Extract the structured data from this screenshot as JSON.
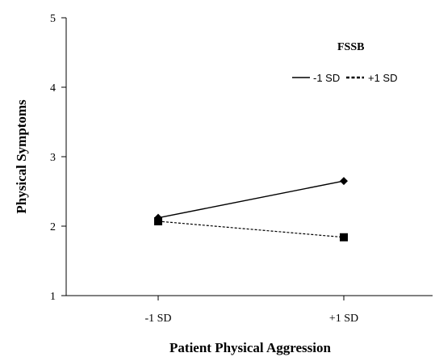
{
  "chart_data": {
    "type": "line",
    "categories": [
      "-1 SD",
      "+1 SD"
    ],
    "series": [
      {
        "name": "-1 SD",
        "values": [
          2.12,
          2.65
        ],
        "line_style": "solid",
        "marker": "diamond"
      },
      {
        "name": "+1 SD",
        "values": [
          2.07,
          1.84
        ],
        "line_style": "dashed",
        "marker": "square"
      }
    ],
    "title": "",
    "xlabel": "Patient Physical Aggression",
    "ylabel": "Physical Symptoms",
    "ylim": [
      1,
      5
    ],
    "yticks": [
      "1",
      "2",
      "3",
      "4",
      "5"
    ],
    "legend": {
      "title": "FSSB",
      "placement": "top-right"
    },
    "grid": false
  },
  "colors": {
    "line": "#000000",
    "background": "#ffffff"
  }
}
